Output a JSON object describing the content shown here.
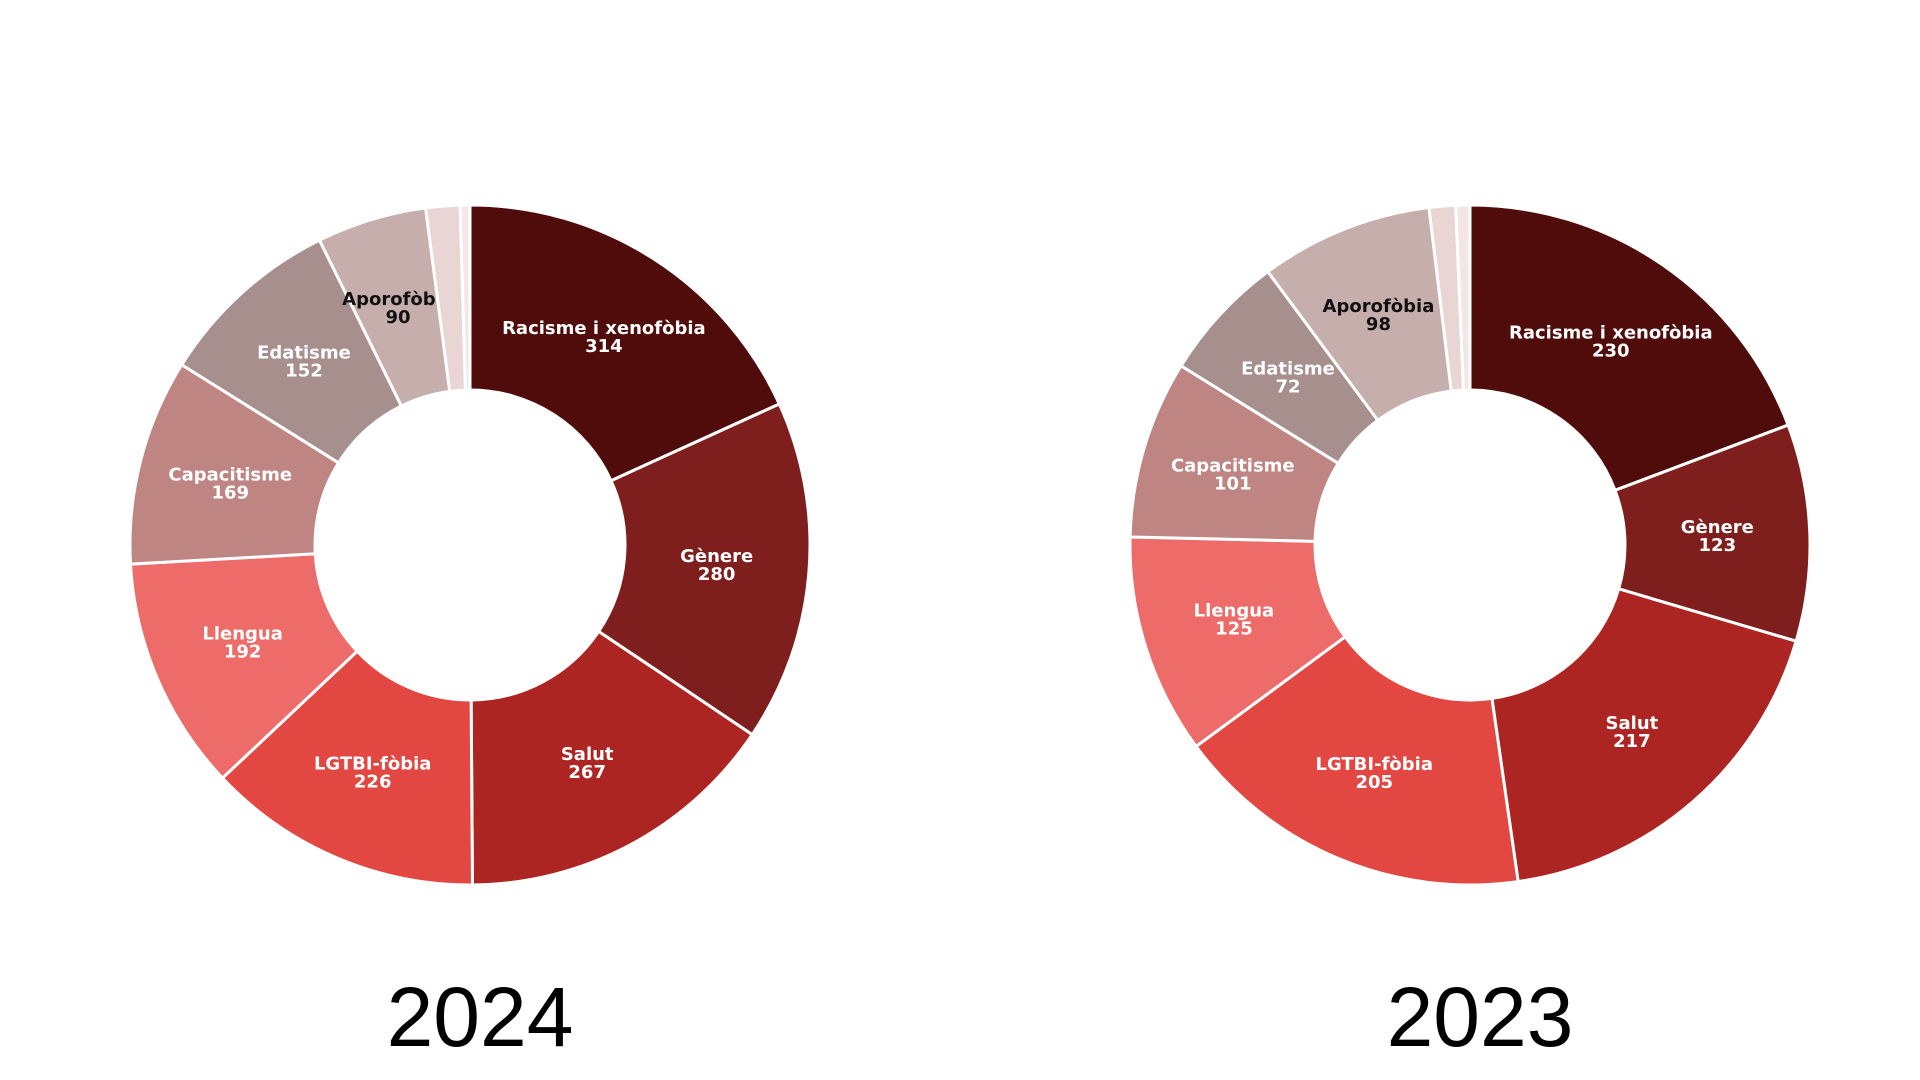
{
  "chart_data": [
    {
      "type": "pie",
      "title": "2024",
      "categories": [
        "Racisme i xenofòbia",
        "Gènere",
        "Salut",
        "LGTBI-fòbia",
        "Llengua",
        "Capacitisme",
        "Edatisme",
        "Aporofòbia",
        "",
        ""
      ],
      "values": [
        314,
        280,
        267,
        226,
        192,
        169,
        152,
        90,
        28,
        8
      ],
      "labels": [
        {
          "name": "Racisme i xenofòbia",
          "value": "314"
        },
        {
          "name": "Gènere",
          "value": "280"
        },
        {
          "name": "Salut",
          "value": "267"
        },
        {
          "name": "LGTBI-fòbia",
          "value": "226"
        },
        {
          "name": "Llengua",
          "value": "192"
        },
        {
          "name": "Capacitisme",
          "value": "169"
        },
        {
          "name": "Edatisme",
          "value": "152"
        },
        {
          "name": "Aporofòbia",
          "value": "90"
        }
      ],
      "colors": [
        "#4f0c0a",
        "#7e1f1d",
        "#ad2522",
        "#e24742",
        "#ed6c69",
        "#be8583",
        "#a78f8e",
        "#c6aeac",
        "#e9d5d4",
        "#f2e6e6"
      ],
      "label_colors": [
        "#ffffff",
        "#ffffff",
        "#ffffff",
        "#ffffff",
        "#ffffff",
        "#ffffff",
        "#ffffff",
        "#111111"
      ]
    },
    {
      "type": "pie",
      "title": "2023",
      "categories": [
        "Racisme i xenofòbia",
        "Gènere",
        "Salut",
        "LGTBI-fòbia",
        "Llengua",
        "Capacitisme",
        "Edatisme",
        "Aporofòbia",
        "",
        ""
      ],
      "values": [
        230,
        123,
        217,
        205,
        125,
        101,
        72,
        98,
        15,
        8
      ],
      "labels": [
        {
          "name": "Racisme i xenofòbia",
          "value": "230"
        },
        {
          "name": "Gènere",
          "value": "123"
        },
        {
          "name": "Salut",
          "value": "217"
        },
        {
          "name": "LGTBI-fòbia",
          "value": "205"
        },
        {
          "name": "Llengua",
          "value": "125"
        },
        {
          "name": "Capacitisme",
          "value": "101"
        },
        {
          "name": "Edatisme",
          "value": "72"
        },
        {
          "name": "Aporofòbia",
          "value": "98"
        }
      ],
      "colors": [
        "#4f0c0a",
        "#7e1f1d",
        "#ad2522",
        "#e24742",
        "#ed6c69",
        "#be8583",
        "#a78f8e",
        "#c6aeac",
        "#e9d5d4",
        "#f2e6e6"
      ],
      "label_colors": [
        "#ffffff",
        "#ffffff",
        "#ffffff",
        "#ffffff",
        "#ffffff",
        "#ffffff",
        "#ffffff",
        "#111111"
      ]
    }
  ]
}
